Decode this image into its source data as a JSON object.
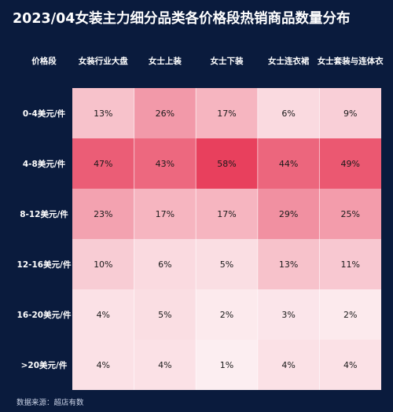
{
  "title": "2023/04女装主力细分品类各价格段热销商品数量分布",
  "source": "数据来源：超店有数",
  "colors": {
    "background": "#0a1b3d",
    "panel": "#ffffff",
    "header_bg": "#0a1b3d",
    "heat_low": "#fdf4f6",
    "heat_high": "#e8405d"
  },
  "chart_data": {
    "type": "heatmap",
    "title": "2023/04女装主力细分品类各价格段热销商品数量分布",
    "corner_label": "价格段",
    "columns": [
      "女装行业大盘",
      "女士上装",
      "女士下装",
      "女士连衣裙",
      "女士套装与连体衣"
    ],
    "rows": [
      "0-4美元/件",
      "4-8美元/件",
      "8-12美元/件",
      "12-16美元/件",
      "16-20美元/件",
      ">20美元/件"
    ],
    "unit": "%",
    "values": [
      [
        13,
        26,
        17,
        6,
        9
      ],
      [
        47,
        43,
        58,
        44,
        49
      ],
      [
        23,
        17,
        17,
        29,
        25
      ],
      [
        10,
        6,
        5,
        13,
        11
      ],
      [
        4,
        5,
        2,
        3,
        2
      ],
      [
        4,
        4,
        1,
        4,
        4
      ]
    ],
    "value_labels": [
      [
        "13%",
        "26%",
        "17%",
        "6%",
        "9%"
      ],
      [
        "47%",
        "43%",
        "58%",
        "44%",
        "49%"
      ],
      [
        "23%",
        "17%",
        "17%",
        "29%",
        "25%"
      ],
      [
        "10%",
        "6%",
        "5%",
        "13%",
        "11%"
      ],
      [
        "4%",
        "5%",
        "2%",
        "3%",
        "2%"
      ],
      [
        "4%",
        "4%",
        "1%",
        "4%",
        "4%"
      ]
    ]
  }
}
